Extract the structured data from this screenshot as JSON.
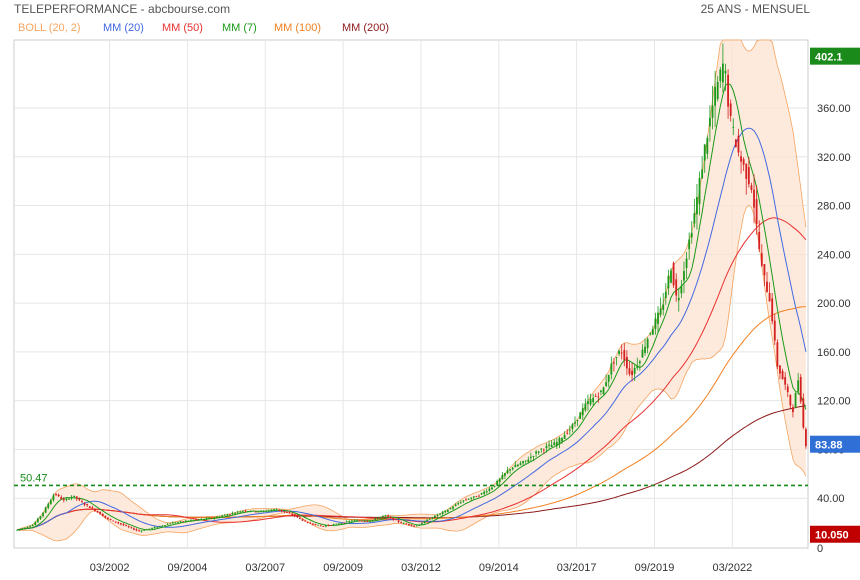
{
  "header": {
    "title": "TELEPERFORMANCE - abcbourse.com",
    "period": "25 ANS - MENSUEL"
  },
  "legend": [
    {
      "label": "BOLL (20, 2)",
      "color": "#f4a460"
    },
    {
      "label": "MM (20)",
      "color": "#4169e1"
    },
    {
      "label": "MM (50)",
      "color": "#e83030"
    },
    {
      "label": "MM (7)",
      "color": "#1a9a1a"
    },
    {
      "label": "MM (100)",
      "color": "#f08020"
    },
    {
      "label": "MM (200)",
      "color": "#8b1a1a"
    }
  ],
  "colors": {
    "up": "#1a9a1a",
    "down": "#d42020",
    "boll_fill": "#fde3d0",
    "boll_line": "#f4a460",
    "grid": "#e6e6e6",
    "dotted_line": "#1a8a1a"
  },
  "chart_data": {
    "type": "line",
    "title": "TELEPERFORMANCE - abcbourse.com",
    "y_ticks": [
      40.0,
      80.0,
      120.0,
      160.0,
      200.0,
      240.0,
      280.0,
      320.0,
      360.0
    ],
    "y_tick_labels": [
      "40.00",
      "80.00",
      "120.00",
      "160.00",
      "200.00",
      "240.00",
      "280.00",
      "320.00",
      "360.00"
    ],
    "ylim": [
      0,
      430
    ],
    "x_tick_labels": [
      "03/2002",
      "09/2004",
      "03/2007",
      "09/2009",
      "03/2012",
      "09/2014",
      "03/2017",
      "09/2019",
      "03/2022"
    ],
    "x_tick_years": [
      2002.17,
      2004.67,
      2007.17,
      2009.67,
      2012.17,
      2014.67,
      2017.17,
      2019.67,
      2022.17
    ],
    "x_range": [
      1999.1,
      2024.6
    ],
    "markers": [
      {
        "label": "402.1",
        "value": 402.1,
        "color": "#1a8a1a"
      },
      {
        "label": "83.88",
        "value": 83.88,
        "color": "#2f6fd6"
      },
      {
        "label": "10.050",
        "value": 10.05,
        "color": "#c00000"
      }
    ],
    "reference_line": {
      "label": "50.47",
      "value": 50.47
    },
    "corner_label": "0",
    "price_anchors": [
      {
        "x": 1999.2,
        "y": 14
      },
      {
        "x": 1999.7,
        "y": 18
      },
      {
        "x": 2000.0,
        "y": 27
      },
      {
        "x": 2000.4,
        "y": 44
      },
      {
        "x": 2000.7,
        "y": 38
      },
      {
        "x": 2001.0,
        "y": 42
      },
      {
        "x": 2001.3,
        "y": 36
      },
      {
        "x": 2001.7,
        "y": 30
      },
      {
        "x": 2002.1,
        "y": 23
      },
      {
        "x": 2002.6,
        "y": 18
      },
      {
        "x": 2003.1,
        "y": 13
      },
      {
        "x": 2003.6,
        "y": 16
      },
      {
        "x": 2004.2,
        "y": 20
      },
      {
        "x": 2004.8,
        "y": 22
      },
      {
        "x": 2005.5,
        "y": 24
      },
      {
        "x": 2006.0,
        "y": 27
      },
      {
        "x": 2006.5,
        "y": 30
      },
      {
        "x": 2007.0,
        "y": 29
      },
      {
        "x": 2007.5,
        "y": 31
      },
      {
        "x": 2008.0,
        "y": 27
      },
      {
        "x": 2008.5,
        "y": 20
      },
      {
        "x": 2009.0,
        "y": 17
      },
      {
        "x": 2009.5,
        "y": 19
      },
      {
        "x": 2010.0,
        "y": 22
      },
      {
        "x": 2010.5,
        "y": 21
      },
      {
        "x": 2011.0,
        "y": 26
      },
      {
        "x": 2011.5,
        "y": 20
      },
      {
        "x": 2012.0,
        "y": 17
      },
      {
        "x": 2012.5,
        "y": 24
      },
      {
        "x": 2013.0,
        "y": 30
      },
      {
        "x": 2013.5,
        "y": 38
      },
      {
        "x": 2014.0,
        "y": 42
      },
      {
        "x": 2014.5,
        "y": 50
      },
      {
        "x": 2015.0,
        "y": 64
      },
      {
        "x": 2015.5,
        "y": 70
      },
      {
        "x": 2016.0,
        "y": 80
      },
      {
        "x": 2016.5,
        "y": 85
      },
      {
        "x": 2017.0,
        "y": 98
      },
      {
        "x": 2017.5,
        "y": 118
      },
      {
        "x": 2018.0,
        "y": 128
      },
      {
        "x": 2018.3,
        "y": 150
      },
      {
        "x": 2018.6,
        "y": 162
      },
      {
        "x": 2018.9,
        "y": 140
      },
      {
        "x": 2019.2,
        "y": 155
      },
      {
        "x": 2019.5,
        "y": 175
      },
      {
        "x": 2019.9,
        "y": 195
      },
      {
        "x": 2020.2,
        "y": 230
      },
      {
        "x": 2020.4,
        "y": 200
      },
      {
        "x": 2020.7,
        "y": 240
      },
      {
        "x": 2021.0,
        "y": 280
      },
      {
        "x": 2021.3,
        "y": 330
      },
      {
        "x": 2021.6,
        "y": 370
      },
      {
        "x": 2021.9,
        "y": 398
      },
      {
        "x": 2022.1,
        "y": 350
      },
      {
        "x": 2022.4,
        "y": 320
      },
      {
        "x": 2022.8,
        "y": 295
      },
      {
        "x": 2023.1,
        "y": 230
      },
      {
        "x": 2023.4,
        "y": 200
      },
      {
        "x": 2023.6,
        "y": 150
      },
      {
        "x": 2023.9,
        "y": 130
      },
      {
        "x": 2024.1,
        "y": 110
      },
      {
        "x": 2024.3,
        "y": 140
      },
      {
        "x": 2024.5,
        "y": 84
      }
    ]
  }
}
